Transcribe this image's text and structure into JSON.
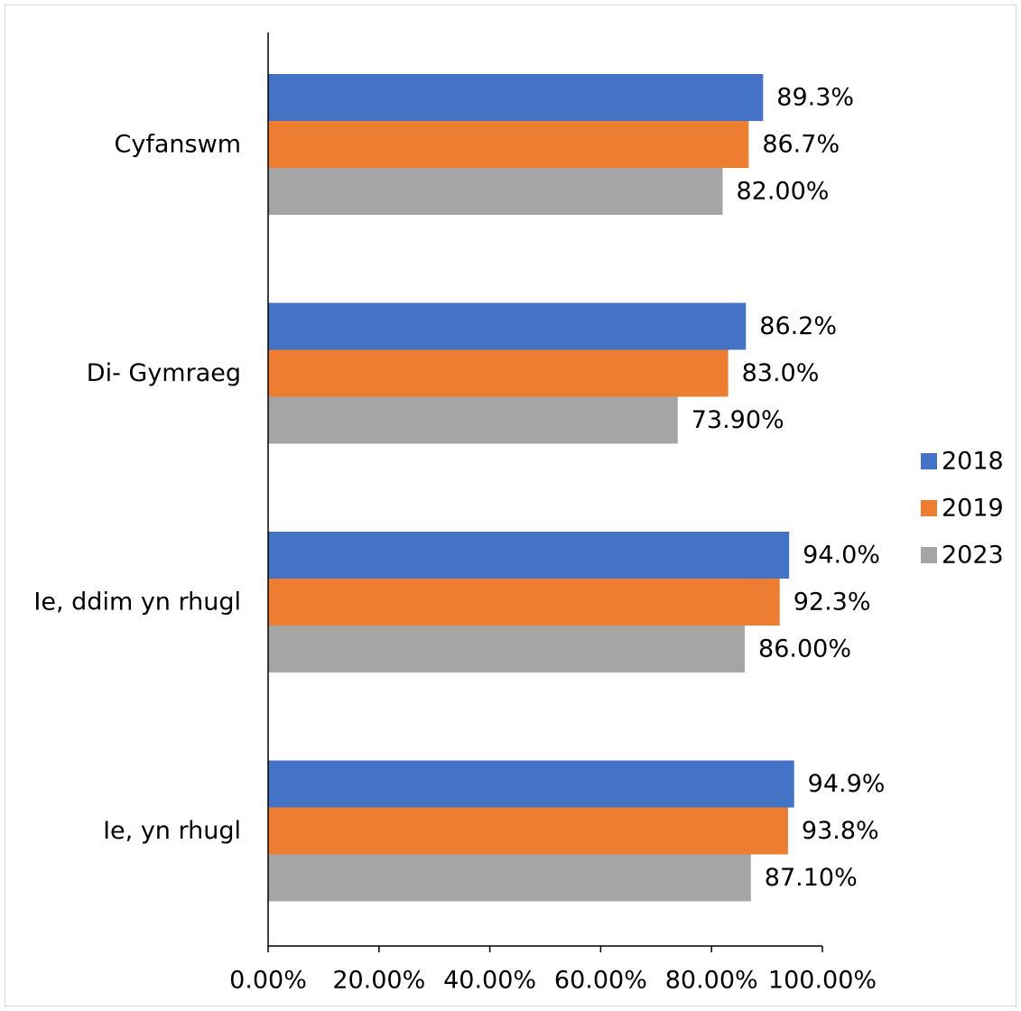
{
  "chart_data": {
    "type": "bar",
    "orientation": "horizontal",
    "categories": [
      "Cyfanswm",
      "Di- Gymraeg",
      "Ie, ddim yn rhugl",
      "Ie, yn rhugl"
    ],
    "series": [
      {
        "name": "2018",
        "color": "#4472c4",
        "values": [
          89.3,
          86.2,
          94.0,
          94.9
        ],
        "labels": [
          "89.3%",
          "86.2%",
          "94.0%",
          "94.9%"
        ]
      },
      {
        "name": "2019",
        "color": "#ed7d31",
        "values": [
          86.7,
          83.0,
          92.3,
          93.8
        ],
        "labels": [
          "86.7%",
          "83.0%",
          "92.3%",
          "93.8%"
        ]
      },
      {
        "name": "2023",
        "color": "#a5a5a5",
        "values": [
          82.0,
          73.9,
          86.0,
          87.1
        ],
        "labels": [
          "82.00%",
          "73.90%",
          "86.00%",
          "87.10%"
        ]
      }
    ],
    "xaxis": {
      "range": [
        0,
        100
      ],
      "ticks": [
        0,
        20,
        40,
        60,
        80,
        100
      ],
      "tick_labels": [
        "0.00%",
        "20.00%",
        "40.00%",
        "60.00%",
        "80.00%",
        "100.00%"
      ]
    },
    "grid": false,
    "legend_position": "right"
  }
}
